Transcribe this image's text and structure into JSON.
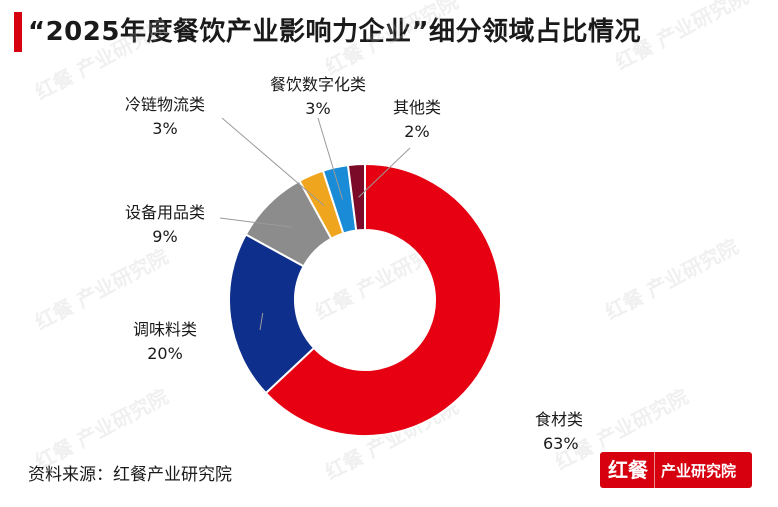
{
  "title": "“2025年度餐饮产业影响力企业”细分领域占比情况",
  "source": "资料来源：红餐产业研究院",
  "brand": {
    "logo": "红餐",
    "name": "产业研究院"
  },
  "watermark": "红餐 产业研究院",
  "chart_data": {
    "type": "pie",
    "donut": true,
    "start_angle_deg": 0,
    "direction": "clockwise",
    "slices": [
      {
        "label": "食材类",
        "value": 63,
        "value_label": "63%",
        "color": "#e60012"
      },
      {
        "label": "调味料类",
        "value": 20,
        "value_label": "20%",
        "color": "#0e2f8c"
      },
      {
        "label": "设备用品类",
        "value": 9,
        "value_label": "9%",
        "color": "#8c8c8c"
      },
      {
        "label": "冷链物流类",
        "value": 3,
        "value_label": "3%",
        "color": "#f0a51e"
      },
      {
        "label": "餐饮数字化类",
        "value": 3,
        "value_label": "3%",
        "color": "#1a8bd6"
      },
      {
        "label": "其他类",
        "value": 2,
        "value_label": "2%",
        "color": "#7a0a28"
      }
    ]
  }
}
